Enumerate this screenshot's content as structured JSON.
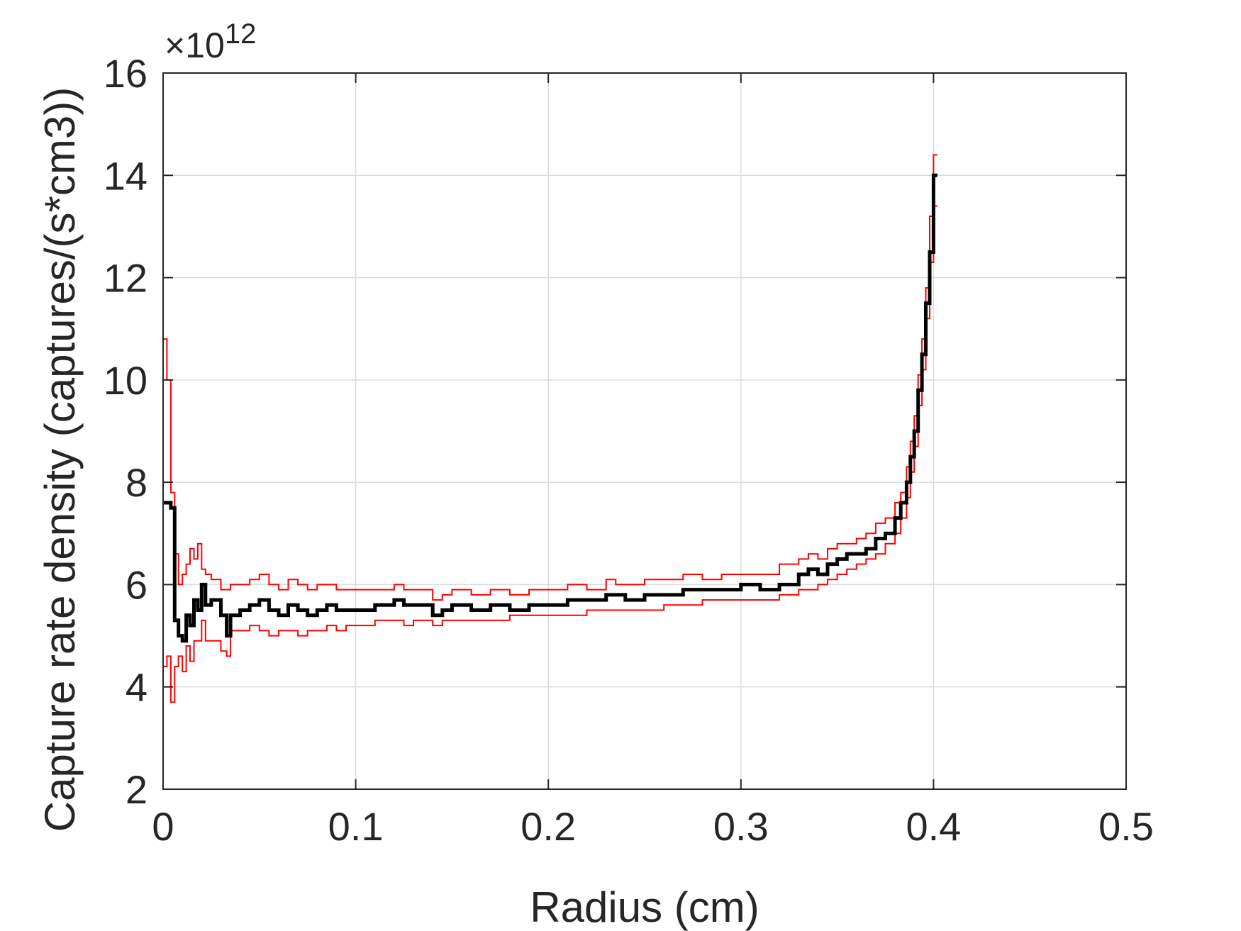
{
  "chart_data": {
    "type": "line",
    "title": "",
    "xlabel": "Radius (cm)",
    "ylabel": "Capture rate density (captures/(s*cm3))",
    "y_exponent_prefix": "×10",
    "y_exponent_power": "12",
    "xlim": [
      0,
      0.5
    ],
    "ylim": [
      2,
      16
    ],
    "x_ticks": [
      0,
      0.1,
      0.2,
      0.3,
      0.4,
      0.5
    ],
    "x_tick_labels": [
      "0",
      "0.1",
      "0.2",
      "0.3",
      "0.4",
      "0.5"
    ],
    "y_ticks": [
      2,
      4,
      6,
      8,
      10,
      12,
      14,
      16
    ],
    "y_tick_labels": [
      "2",
      "4",
      "6",
      "8",
      "10",
      "12",
      "14",
      "16"
    ],
    "grid": true,
    "step_plot": true,
    "series": [
      {
        "role": "mean",
        "color": "#000000",
        "x": [
          0,
          0.004,
          0.006,
          0.008,
          0.01,
          0.012,
          0.014,
          0.016,
          0.018,
          0.02,
          0.022,
          0.025,
          0.03,
          0.033,
          0.035,
          0.04,
          0.045,
          0.05,
          0.055,
          0.06,
          0.065,
          0.07,
          0.075,
          0.08,
          0.085,
          0.09,
          0.095,
          0.1,
          0.11,
          0.12,
          0.125,
          0.13,
          0.14,
          0.145,
          0.15,
          0.16,
          0.17,
          0.18,
          0.19,
          0.2,
          0.21,
          0.22,
          0.23,
          0.235,
          0.24,
          0.25,
          0.26,
          0.27,
          0.28,
          0.29,
          0.3,
          0.31,
          0.32,
          0.33,
          0.335,
          0.34,
          0.345,
          0.35,
          0.355,
          0.36,
          0.365,
          0.37,
          0.375,
          0.38,
          0.383,
          0.386,
          0.388,
          0.39,
          0.392,
          0.394,
          0.396,
          0.398,
          0.4,
          0.402
        ],
        "y": [
          7.6,
          7.5,
          5.3,
          5.0,
          4.9,
          5.4,
          5.2,
          5.7,
          5.5,
          6.0,
          5.6,
          5.7,
          5.4,
          5.0,
          5.4,
          5.5,
          5.6,
          5.7,
          5.5,
          5.4,
          5.6,
          5.5,
          5.4,
          5.5,
          5.6,
          5.5,
          5.5,
          5.5,
          5.6,
          5.7,
          5.6,
          5.6,
          5.4,
          5.5,
          5.6,
          5.5,
          5.6,
          5.5,
          5.6,
          5.6,
          5.7,
          5.7,
          5.8,
          5.8,
          5.7,
          5.8,
          5.8,
          5.9,
          5.9,
          5.9,
          6.0,
          5.9,
          6.0,
          6.2,
          6.3,
          6.2,
          6.4,
          6.5,
          6.6,
          6.6,
          6.7,
          6.9,
          7.0,
          7.3,
          7.6,
          8.0,
          8.5,
          9.0,
          9.8,
          10.5,
          11.5,
          12.5,
          14.0,
          14.0
        ]
      },
      {
        "role": "upper",
        "color": "#ff0000",
        "x": [
          0,
          0.002,
          0.004,
          0.006,
          0.008,
          0.01,
          0.012,
          0.014,
          0.016,
          0.018,
          0.02,
          0.022,
          0.025,
          0.03,
          0.033,
          0.035,
          0.04,
          0.045,
          0.05,
          0.055,
          0.06,
          0.065,
          0.07,
          0.075,
          0.08,
          0.085,
          0.09,
          0.095,
          0.1,
          0.11,
          0.12,
          0.125,
          0.13,
          0.14,
          0.145,
          0.15,
          0.16,
          0.17,
          0.18,
          0.19,
          0.2,
          0.21,
          0.22,
          0.23,
          0.235,
          0.24,
          0.25,
          0.26,
          0.27,
          0.28,
          0.29,
          0.3,
          0.31,
          0.32,
          0.33,
          0.335,
          0.34,
          0.345,
          0.35,
          0.355,
          0.36,
          0.365,
          0.37,
          0.375,
          0.38,
          0.383,
          0.386,
          0.388,
          0.39,
          0.392,
          0.394,
          0.396,
          0.398,
          0.4,
          0.402
        ],
        "y": [
          10.8,
          10.0,
          7.8,
          6.6,
          6.0,
          6.2,
          6.4,
          6.7,
          6.5,
          6.8,
          6.3,
          6.2,
          6.1,
          5.9,
          5.9,
          6.0,
          6.0,
          6.1,
          6.2,
          6.0,
          5.9,
          6.1,
          6.0,
          5.9,
          6.0,
          6.0,
          5.9,
          5.9,
          5.9,
          5.9,
          6.0,
          5.9,
          5.9,
          5.7,
          5.8,
          5.9,
          5.8,
          5.9,
          5.8,
          5.9,
          5.9,
          6.0,
          5.9,
          6.1,
          6.0,
          6.0,
          6.1,
          6.1,
          6.2,
          6.1,
          6.2,
          6.2,
          6.2,
          6.4,
          6.5,
          6.6,
          6.5,
          6.7,
          6.8,
          6.8,
          6.9,
          7.0,
          7.2,
          7.3,
          7.6,
          7.8,
          8.3,
          8.8,
          9.3,
          10.1,
          10.8,
          11.8,
          13.2,
          14.4,
          14.4
        ]
      },
      {
        "role": "lower",
        "color": "#ff0000",
        "x": [
          0,
          0.002,
          0.004,
          0.006,
          0.008,
          0.01,
          0.012,
          0.014,
          0.016,
          0.018,
          0.02,
          0.022,
          0.025,
          0.03,
          0.033,
          0.035,
          0.04,
          0.045,
          0.05,
          0.055,
          0.06,
          0.065,
          0.07,
          0.075,
          0.08,
          0.085,
          0.09,
          0.095,
          0.1,
          0.11,
          0.12,
          0.125,
          0.13,
          0.14,
          0.145,
          0.15,
          0.16,
          0.17,
          0.18,
          0.19,
          0.2,
          0.21,
          0.22,
          0.23,
          0.235,
          0.24,
          0.25,
          0.26,
          0.27,
          0.28,
          0.29,
          0.3,
          0.31,
          0.32,
          0.33,
          0.335,
          0.34,
          0.345,
          0.35,
          0.355,
          0.36,
          0.365,
          0.37,
          0.375,
          0.38,
          0.383,
          0.386,
          0.388,
          0.39,
          0.392,
          0.394,
          0.396,
          0.398,
          0.4,
          0.402
        ],
        "y": [
          4.4,
          4.6,
          3.7,
          4.4,
          4.6,
          4.3,
          4.8,
          4.5,
          4.9,
          4.9,
          5.3,
          4.9,
          4.9,
          4.7,
          4.6,
          5.1,
          5.1,
          5.2,
          5.1,
          5.0,
          5.1,
          5.1,
          5.0,
          5.1,
          5.1,
          5.2,
          5.1,
          5.2,
          5.2,
          5.3,
          5.3,
          5.2,
          5.3,
          5.2,
          5.3,
          5.3,
          5.3,
          5.3,
          5.4,
          5.4,
          5.4,
          5.4,
          5.5,
          5.5,
          5.5,
          5.5,
          5.5,
          5.6,
          5.6,
          5.7,
          5.7,
          5.7,
          5.7,
          5.8,
          5.9,
          5.9,
          6.0,
          6.1,
          6.2,
          6.3,
          6.4,
          6.5,
          6.6,
          6.8,
          7.0,
          7.3,
          7.7,
          8.2,
          8.7,
          9.5,
          10.2,
          11.2,
          12.3,
          13.4,
          13.4
        ]
      }
    ]
  }
}
